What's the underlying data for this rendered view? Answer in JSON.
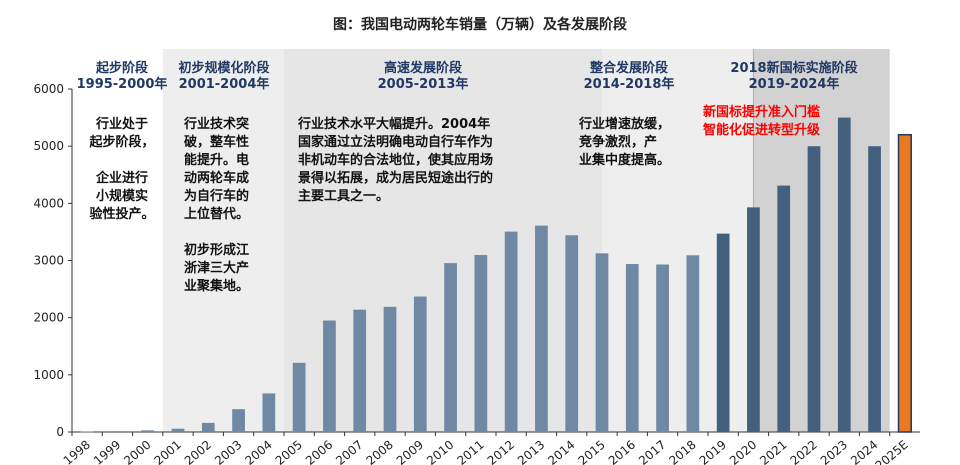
{
  "title": "图：我国电动两轮车销量（万辆）及各发展阶段",
  "stages": [
    {
      "name": "起步阶段",
      "period": "1995-2000年",
      "desc": "行业处于\n起步阶段，\n\n企业进行\n小规模实\n验性投产。"
    },
    {
      "name": "初步规模化阶段",
      "period": "2001-2004年",
      "desc": "行业技术突\n破，整车性\n能提升。电\n动两轮车成\n为自行车的\n上位替代。\n\n初步形成江\n浙津三大产\n业聚集地。"
    },
    {
      "name": "高速发展阶段",
      "period": "2005-2013年",
      "desc": "行业技术水平大幅提升。2004年\n国家通过立法明确电动自行车作为\n非机动车的合法地位，使其应用场\n景得以拓展，成为居民短途出行的\n主要工具之一。"
    },
    {
      "name": "整合发展阶段",
      "period": "2014-2018年",
      "desc": "行业增速放缓，\n竞争激烈，产\n业集中度提高。"
    },
    {
      "name": "2018新国标实施阶段",
      "period": "2019-2024年",
      "desc": "新国标提升准入门槛\n智能化促进转型升级"
    }
  ],
  "colors": {
    "bar": "#6f88a3",
    "bar_late": "#44607f",
    "bar_forecast": "#e97a1e",
    "bar_forecast_border": "#1f3864",
    "stage_head": "#1f3864",
    "bg_stage_1": "#ffffff",
    "bg_stage_2": "#eeeeee",
    "bg_stage_3": "#e6e6e6",
    "bg_stage_4": "#eeeeee",
    "bg_stage_5": "#d2d2d2",
    "highlight_text": "#ff0000"
  },
  "chart_data": {
    "type": "bar",
    "title": "图：我国电动两轮车销量（万辆）及各发展阶段",
    "xlabel": "",
    "ylabel": "",
    "ylim": [
      0,
      6000
    ],
    "yticks": [
      0,
      1000,
      2000,
      3000,
      4000,
      5000,
      6000
    ],
    "grid": false,
    "categories": [
      "1998",
      "1999",
      "2000",
      "2001",
      "2002",
      "2003",
      "2004",
      "2005",
      "2006",
      "2007",
      "2008",
      "2009",
      "2010",
      "2011",
      "2012",
      "2013",
      "2014",
      "2015",
      "2016",
      "2017",
      "2018",
      "2019",
      "2020",
      "2021",
      "2022",
      "2023",
      "2024",
      "2025E"
    ],
    "values": [
      10,
      15,
      29,
      58,
      160,
      400,
      675,
      1210,
      1950,
      2140,
      2190,
      2370,
      2954,
      3096,
      3505,
      3610,
      3441,
      3125,
      2938,
      2930,
      3091,
      3470,
      3930,
      4310,
      4999,
      5500,
      4999,
      5200
    ]
  }
}
